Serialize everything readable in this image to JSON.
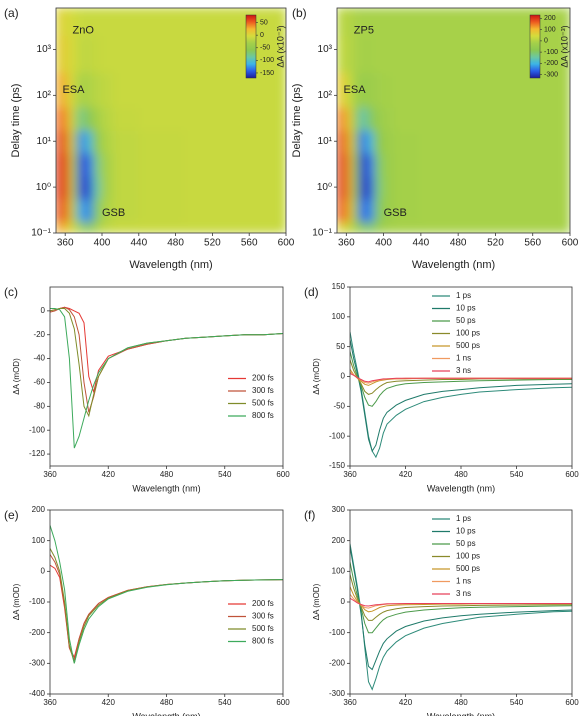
{
  "chart_data": [
    {
      "type": "heatmap",
      "panel_label": "(a)",
      "annotations": [
        "ZnO",
        "ESA",
        "GSB"
      ],
      "xlabel": "Wavelength (nm)",
      "ylabel": "Delay time (ps)",
      "log_y": true,
      "xlim": [
        350,
        600
      ],
      "xticks": [
        360,
        400,
        440,
        480,
        520,
        560,
        600
      ],
      "ylim": [
        0.1,
        8000
      ],
      "yticks": [
        {
          "value": 0.1,
          "label": "10⁻¹"
        },
        {
          "value": 1,
          "label": "10⁰"
        },
        {
          "value": 10,
          "label": "10¹"
        },
        {
          "value": 100,
          "label": "10²"
        },
        {
          "value": 1000,
          "label": "10³"
        }
      ],
      "x": [
        354,
        362,
        370,
        378,
        386,
        394,
        404,
        420,
        460,
        520,
        600
      ],
      "y": [
        0.1,
        0.3,
        1,
        3,
        10,
        30,
        100,
        1000,
        4000
      ],
      "z": [
        [
          30,
          15,
          -10,
          -40,
          -60,
          -30,
          -15,
          -10,
          -10,
          -10,
          -10
        ],
        [
          60,
          40,
          -30,
          -120,
          -130,
          -70,
          -25,
          -15,
          -12,
          -10,
          -10
        ],
        [
          70,
          50,
          -40,
          -150,
          -150,
          -90,
          -30,
          -15,
          -12,
          -10,
          -10
        ],
        [
          70,
          50,
          -40,
          -150,
          -140,
          -80,
          -30,
          -15,
          -12,
          -10,
          -10
        ],
        [
          65,
          40,
          -30,
          -130,
          -110,
          -60,
          -25,
          -15,
          -12,
          -10,
          -10
        ],
        [
          50,
          30,
          -20,
          -80,
          -60,
          -35,
          -20,
          -12,
          -10,
          -10,
          -10
        ],
        [
          30,
          15,
          -10,
          -30,
          -25,
          -20,
          -15,
          -10,
          -10,
          -10,
          -10
        ],
        [
          10,
          5,
          -5,
          -15,
          -15,
          -12,
          -10,
          -10,
          -10,
          -10,
          -10
        ],
        [
          5,
          0,
          -5,
          -10,
          -10,
          -10,
          -10,
          -10,
          -10,
          -10,
          -10
        ]
      ],
      "colorbar": {
        "label": "ΔA (x10⁻³)",
        "lim": [
          -170,
          80
        ],
        "ticks": [
          50,
          0,
          -50,
          -100,
          -150
        ],
        "colors": [
          "#1c1c9a",
          "#2a5ee8",
          "#3cb4e6",
          "#6cc8a0",
          "#8cc850",
          "#a4d04a",
          "#d4dc3c",
          "#f4b830",
          "#ec5a20",
          "#cc1414"
        ]
      }
    },
    {
      "type": "heatmap",
      "panel_label": "(b)",
      "annotations": [
        "ZP5",
        "ESA",
        "GSB"
      ],
      "xlabel": "Wavelength (nm)",
      "ylabel": "Delay time (ps)",
      "log_y": true,
      "xlim": [
        350,
        600
      ],
      "xticks": [
        360,
        400,
        440,
        480,
        520,
        560,
        600
      ],
      "ylim": [
        0.1,
        8000
      ],
      "yticks": [
        {
          "value": 0.1,
          "label": "10⁻¹"
        },
        {
          "value": 1,
          "label": "10⁰"
        },
        {
          "value": 10,
          "label": "10¹"
        },
        {
          "value": 100,
          "label": "10²"
        },
        {
          "value": 1000,
          "label": "10³"
        }
      ],
      "x": [
        354,
        362,
        370,
        378,
        386,
        394,
        404,
        420,
        460,
        520,
        600
      ],
      "y": [
        0.1,
        0.3,
        1,
        3,
        10,
        30,
        100,
        1000,
        4000
      ],
      "z": [
        [
          60,
          30,
          -20,
          -80,
          -100,
          -50,
          -20,
          -15,
          -15,
          -15,
          -15
        ],
        [
          180,
          120,
          -60,
          -260,
          -240,
          -100,
          -40,
          -20,
          -15,
          -15,
          -15
        ],
        [
          200,
          140,
          -80,
          -300,
          -280,
          -120,
          -40,
          -20,
          -15,
          -15,
          -15
        ],
        [
          200,
          140,
          -80,
          -300,
          -260,
          -110,
          -40,
          -20,
          -15,
          -15,
          -15
        ],
        [
          190,
          120,
          -60,
          -260,
          -200,
          -80,
          -35,
          -20,
          -15,
          -15,
          -15
        ],
        [
          150,
          90,
          -40,
          -160,
          -100,
          -50,
          -25,
          -15,
          -15,
          -15,
          -15
        ],
        [
          80,
          40,
          -20,
          -50,
          -40,
          -25,
          -20,
          -15,
          -15,
          -15,
          -15
        ],
        [
          20,
          10,
          -10,
          -20,
          -20,
          -15,
          -15,
          -15,
          -15,
          -15,
          -15
        ],
        [
          10,
          5,
          -10,
          -15,
          -15,
          -15,
          -15,
          -15,
          -15,
          -15,
          -15
        ]
      ],
      "colorbar": {
        "label": "ΔA (x10⁻³)",
        "lim": [
          -330,
          230
        ],
        "ticks": [
          200,
          100,
          0,
          -100,
          -200,
          -300
        ],
        "colors": [
          "#1c1c9a",
          "#2a5ee8",
          "#3cb4e6",
          "#6cc8a0",
          "#8cc850",
          "#a4d04a",
          "#d4dc3c",
          "#f4b830",
          "#ec5a20",
          "#cc1414"
        ]
      }
    },
    {
      "type": "line",
      "panel_label": "(c)",
      "xlabel": "Wavelength (nm)",
      "ylabel": "ΔA (mOD)",
      "legend": "center right",
      "xlim": [
        360,
        600
      ],
      "xticks": [
        360,
        420,
        480,
        540,
        600
      ],
      "ylim": [
        -130,
        20
      ],
      "yticks": [
        0,
        -20,
        -40,
        -60,
        -80,
        -100,
        -120
      ],
      "x": [
        360,
        365,
        370,
        375,
        380,
        385,
        390,
        395,
        400,
        405,
        410,
        420,
        440,
        460,
        480,
        500,
        520,
        540,
        560,
        580,
        600
      ],
      "series": [
        {
          "name": "200 fs",
          "color": "#e53935",
          "values": [
            0,
            1,
            2,
            3,
            2,
            0,
            -2,
            -10,
            -55,
            -68,
            -50,
            -38,
            -32,
            -28,
            -25,
            -23,
            -22,
            -21,
            -20,
            -20,
            -19
          ]
        },
        {
          "name": "300 fs",
          "color": "#c0533a",
          "values": [
            -1,
            0,
            2,
            3,
            1,
            -5,
            -20,
            -60,
            -85,
            -72,
            -55,
            -40,
            -32,
            -28,
            -25,
            -23,
            -22,
            -21,
            -20,
            -20,
            -19
          ]
        },
        {
          "name": "500 fs",
          "color": "#7f8c2a",
          "values": [
            0,
            1,
            2,
            2,
            -2,
            -15,
            -45,
            -80,
            -88,
            -70,
            -55,
            -40,
            -31,
            -27,
            -25,
            -23,
            -22,
            -21,
            -20,
            -20,
            -19
          ]
        },
        {
          "name": "800 fs",
          "color": "#3daa5c",
          "values": [
            2,
            2,
            1,
            -5,
            -40,
            -115,
            -105,
            -90,
            -75,
            -62,
            -52,
            -40,
            -31,
            -27,
            -25,
            -23,
            -22,
            -21,
            -20,
            -20,
            -19
          ]
        }
      ]
    },
    {
      "type": "line",
      "panel_label": "(d)",
      "xlabel": "Wavelength (nm)",
      "ylabel": "ΔA (mOD)",
      "legend": "upper right",
      "xlim": [
        360,
        600
      ],
      "xticks": [
        360,
        420,
        480,
        540,
        600
      ],
      "ylim": [
        -150,
        150
      ],
      "yticks": [
        150,
        100,
        50,
        0,
        -50,
        -100,
        -150
      ],
      "x": [
        360,
        364,
        368,
        372,
        376,
        380,
        384,
        388,
        392,
        396,
        400,
        410,
        420,
        440,
        460,
        480,
        500,
        540,
        580,
        600
      ],
      "series": [
        {
          "name": "1 ps",
          "color": "#2e8b7a",
          "values": [
            75,
            40,
            10,
            -20,
            -60,
            -100,
            -125,
            -135,
            -120,
            -95,
            -80,
            -65,
            -55,
            -42,
            -35,
            -30,
            -26,
            -22,
            -19,
            -18
          ]
        },
        {
          "name": "10 ps",
          "color": "#1f7a6a",
          "values": [
            62,
            30,
            5,
            -25,
            -65,
            -105,
            -125,
            -115,
            -90,
            -70,
            -60,
            -48,
            -40,
            -30,
            -25,
            -22,
            -19,
            -15,
            -13,
            -12
          ]
        },
        {
          "name": "50 ps",
          "color": "#4c9a4a",
          "values": [
            42,
            18,
            0,
            -15,
            -35,
            -48,
            -50,
            -42,
            -32,
            -25,
            -20,
            -15,
            -12,
            -10,
            -9,
            -8,
            -7,
            -6,
            -5,
            -5
          ]
        },
        {
          "name": "100 ps",
          "color": "#8a8a2a",
          "values": [
            28,
            10,
            -2,
            -12,
            -25,
            -30,
            -28,
            -22,
            -17,
            -13,
            -10,
            -8,
            -7,
            -6,
            -5,
            -5,
            -4,
            -4,
            -4,
            -4
          ]
        },
        {
          "name": "500 ps",
          "color": "#c8962a",
          "values": [
            12,
            3,
            -3,
            -8,
            -13,
            -15,
            -12,
            -9,
            -7,
            -6,
            -5,
            -4,
            -4,
            -3,
            -3,
            -3,
            -3,
            -3,
            -3,
            -3
          ]
        },
        {
          "name": "1 ns",
          "color": "#f09a60",
          "values": [
            8,
            3,
            -2,
            -6,
            -10,
            -11,
            -9,
            -7,
            -6,
            -5,
            -4,
            -4,
            -3,
            -3,
            -3,
            -3,
            -3,
            -3,
            -3,
            -3
          ]
        },
        {
          "name": "3 ns",
          "color": "#e8405a",
          "values": [
            5,
            2,
            -2,
            -5,
            -8,
            -9,
            -7,
            -6,
            -5,
            -4,
            -4,
            -3,
            -3,
            -3,
            -3,
            -3,
            -3,
            -3,
            -3,
            -3
          ]
        }
      ]
    },
    {
      "type": "line",
      "panel_label": "(e)",
      "xlabel": "Wavelength (nm)",
      "ylabel": "ΔA (mOD)",
      "legend": "center right",
      "xlim": [
        360,
        600
      ],
      "xticks": [
        360,
        420,
        480,
        540,
        600
      ],
      "ylim": [
        -400,
        200
      ],
      "yticks": [
        200,
        100,
        0,
        -100,
        -200,
        -300,
        -400
      ],
      "x": [
        360,
        365,
        370,
        375,
        380,
        385,
        390,
        395,
        400,
        410,
        420,
        440,
        460,
        480,
        500,
        520,
        540,
        560,
        580,
        600
      ],
      "series": [
        {
          "name": "200 fs",
          "color": "#e53935",
          "values": [
            20,
            10,
            -20,
            -120,
            -250,
            -280,
            -220,
            -170,
            -140,
            -105,
            -85,
            -62,
            -50,
            -43,
            -38,
            -34,
            -31,
            -29,
            -28,
            -27
          ]
        },
        {
          "name": "300 fs",
          "color": "#c0533a",
          "values": [
            55,
            30,
            -10,
            -110,
            -250,
            -290,
            -220,
            -170,
            -140,
            -105,
            -85,
            -62,
            -50,
            -43,
            -38,
            -34,
            -31,
            -29,
            -28,
            -27
          ]
        },
        {
          "name": "500 fs",
          "color": "#7f8c2a",
          "values": [
            75,
            45,
            0,
            -100,
            -240,
            -300,
            -230,
            -180,
            -145,
            -110,
            -88,
            -63,
            -51,
            -43,
            -38,
            -34,
            -31,
            -29,
            -28,
            -27
          ]
        },
        {
          "name": "800 fs",
          "color": "#3daa5c",
          "values": [
            150,
            100,
            30,
            -60,
            -220,
            -300,
            -240,
            -190,
            -155,
            -115,
            -90,
            -65,
            -52,
            -44,
            -38,
            -34,
            -31,
            -29,
            -28,
            -27
          ]
        }
      ]
    },
    {
      "type": "line",
      "panel_label": "(f)",
      "xlabel": "Wavelength (nm)",
      "ylabel": "ΔA (mOD)",
      "legend": "upper right",
      "xlim": [
        360,
        600
      ],
      "xticks": [
        360,
        420,
        480,
        540,
        600
      ],
      "ylim": [
        -300,
        300
      ],
      "yticks": [
        300,
        200,
        100,
        0,
        -100,
        -200,
        -300
      ],
      "x": [
        360,
        364,
        368,
        372,
        376,
        380,
        384,
        388,
        392,
        396,
        400,
        410,
        420,
        440,
        460,
        480,
        500,
        540,
        580,
        600
      ],
      "series": [
        {
          "name": "1 ps",
          "color": "#2e8b7a",
          "values": [
            190,
            120,
            50,
            -30,
            -150,
            -260,
            -285,
            -250,
            -210,
            -180,
            -160,
            -130,
            -110,
            -85,
            -70,
            -60,
            -50,
            -40,
            -32,
            -30
          ]
        },
        {
          "name": "10 ps",
          "color": "#1f7a6a",
          "values": [
            180,
            110,
            40,
            -40,
            -140,
            -210,
            -220,
            -190,
            -160,
            -135,
            -120,
            -95,
            -80,
            -62,
            -52,
            -45,
            -40,
            -33,
            -28,
            -26
          ]
        },
        {
          "name": "50 ps",
          "color": "#4c9a4a",
          "values": [
            130,
            70,
            20,
            -20,
            -70,
            -100,
            -100,
            -85,
            -70,
            -58,
            -50,
            -40,
            -33,
            -26,
            -22,
            -19,
            -17,
            -15,
            -13,
            -12
          ]
        },
        {
          "name": "100 ps",
          "color": "#8a8a2a",
          "values": [
            90,
            45,
            10,
            -15,
            -45,
            -60,
            -60,
            -50,
            -40,
            -33,
            -28,
            -22,
            -18,
            -15,
            -13,
            -12,
            -11,
            -10,
            -9,
            -9
          ]
        },
        {
          "name": "500 ps",
          "color": "#c8962a",
          "values": [
            50,
            22,
            2,
            -10,
            -25,
            -32,
            -30,
            -24,
            -18,
            -15,
            -12,
            -10,
            -9,
            -8,
            -7,
            -7,
            -6,
            -6,
            -6,
            -6
          ]
        },
        {
          "name": "1 ns",
          "color": "#f09a60",
          "values": [
            25,
            10,
            -2,
            -10,
            -18,
            -20,
            -16,
            -12,
            -10,
            -8,
            -7,
            -6,
            -6,
            -5,
            -5,
            -5,
            -5,
            -5,
            -5,
            -5
          ]
        },
        {
          "name": "3 ns",
          "color": "#e8405a",
          "values": [
            12,
            5,
            -3,
            -8,
            -12,
            -13,
            -11,
            -9,
            -8,
            -7,
            -6,
            -6,
            -5,
            -5,
            -5,
            -5,
            -5,
            -5,
            -5,
            -5
          ]
        }
      ]
    }
  ]
}
